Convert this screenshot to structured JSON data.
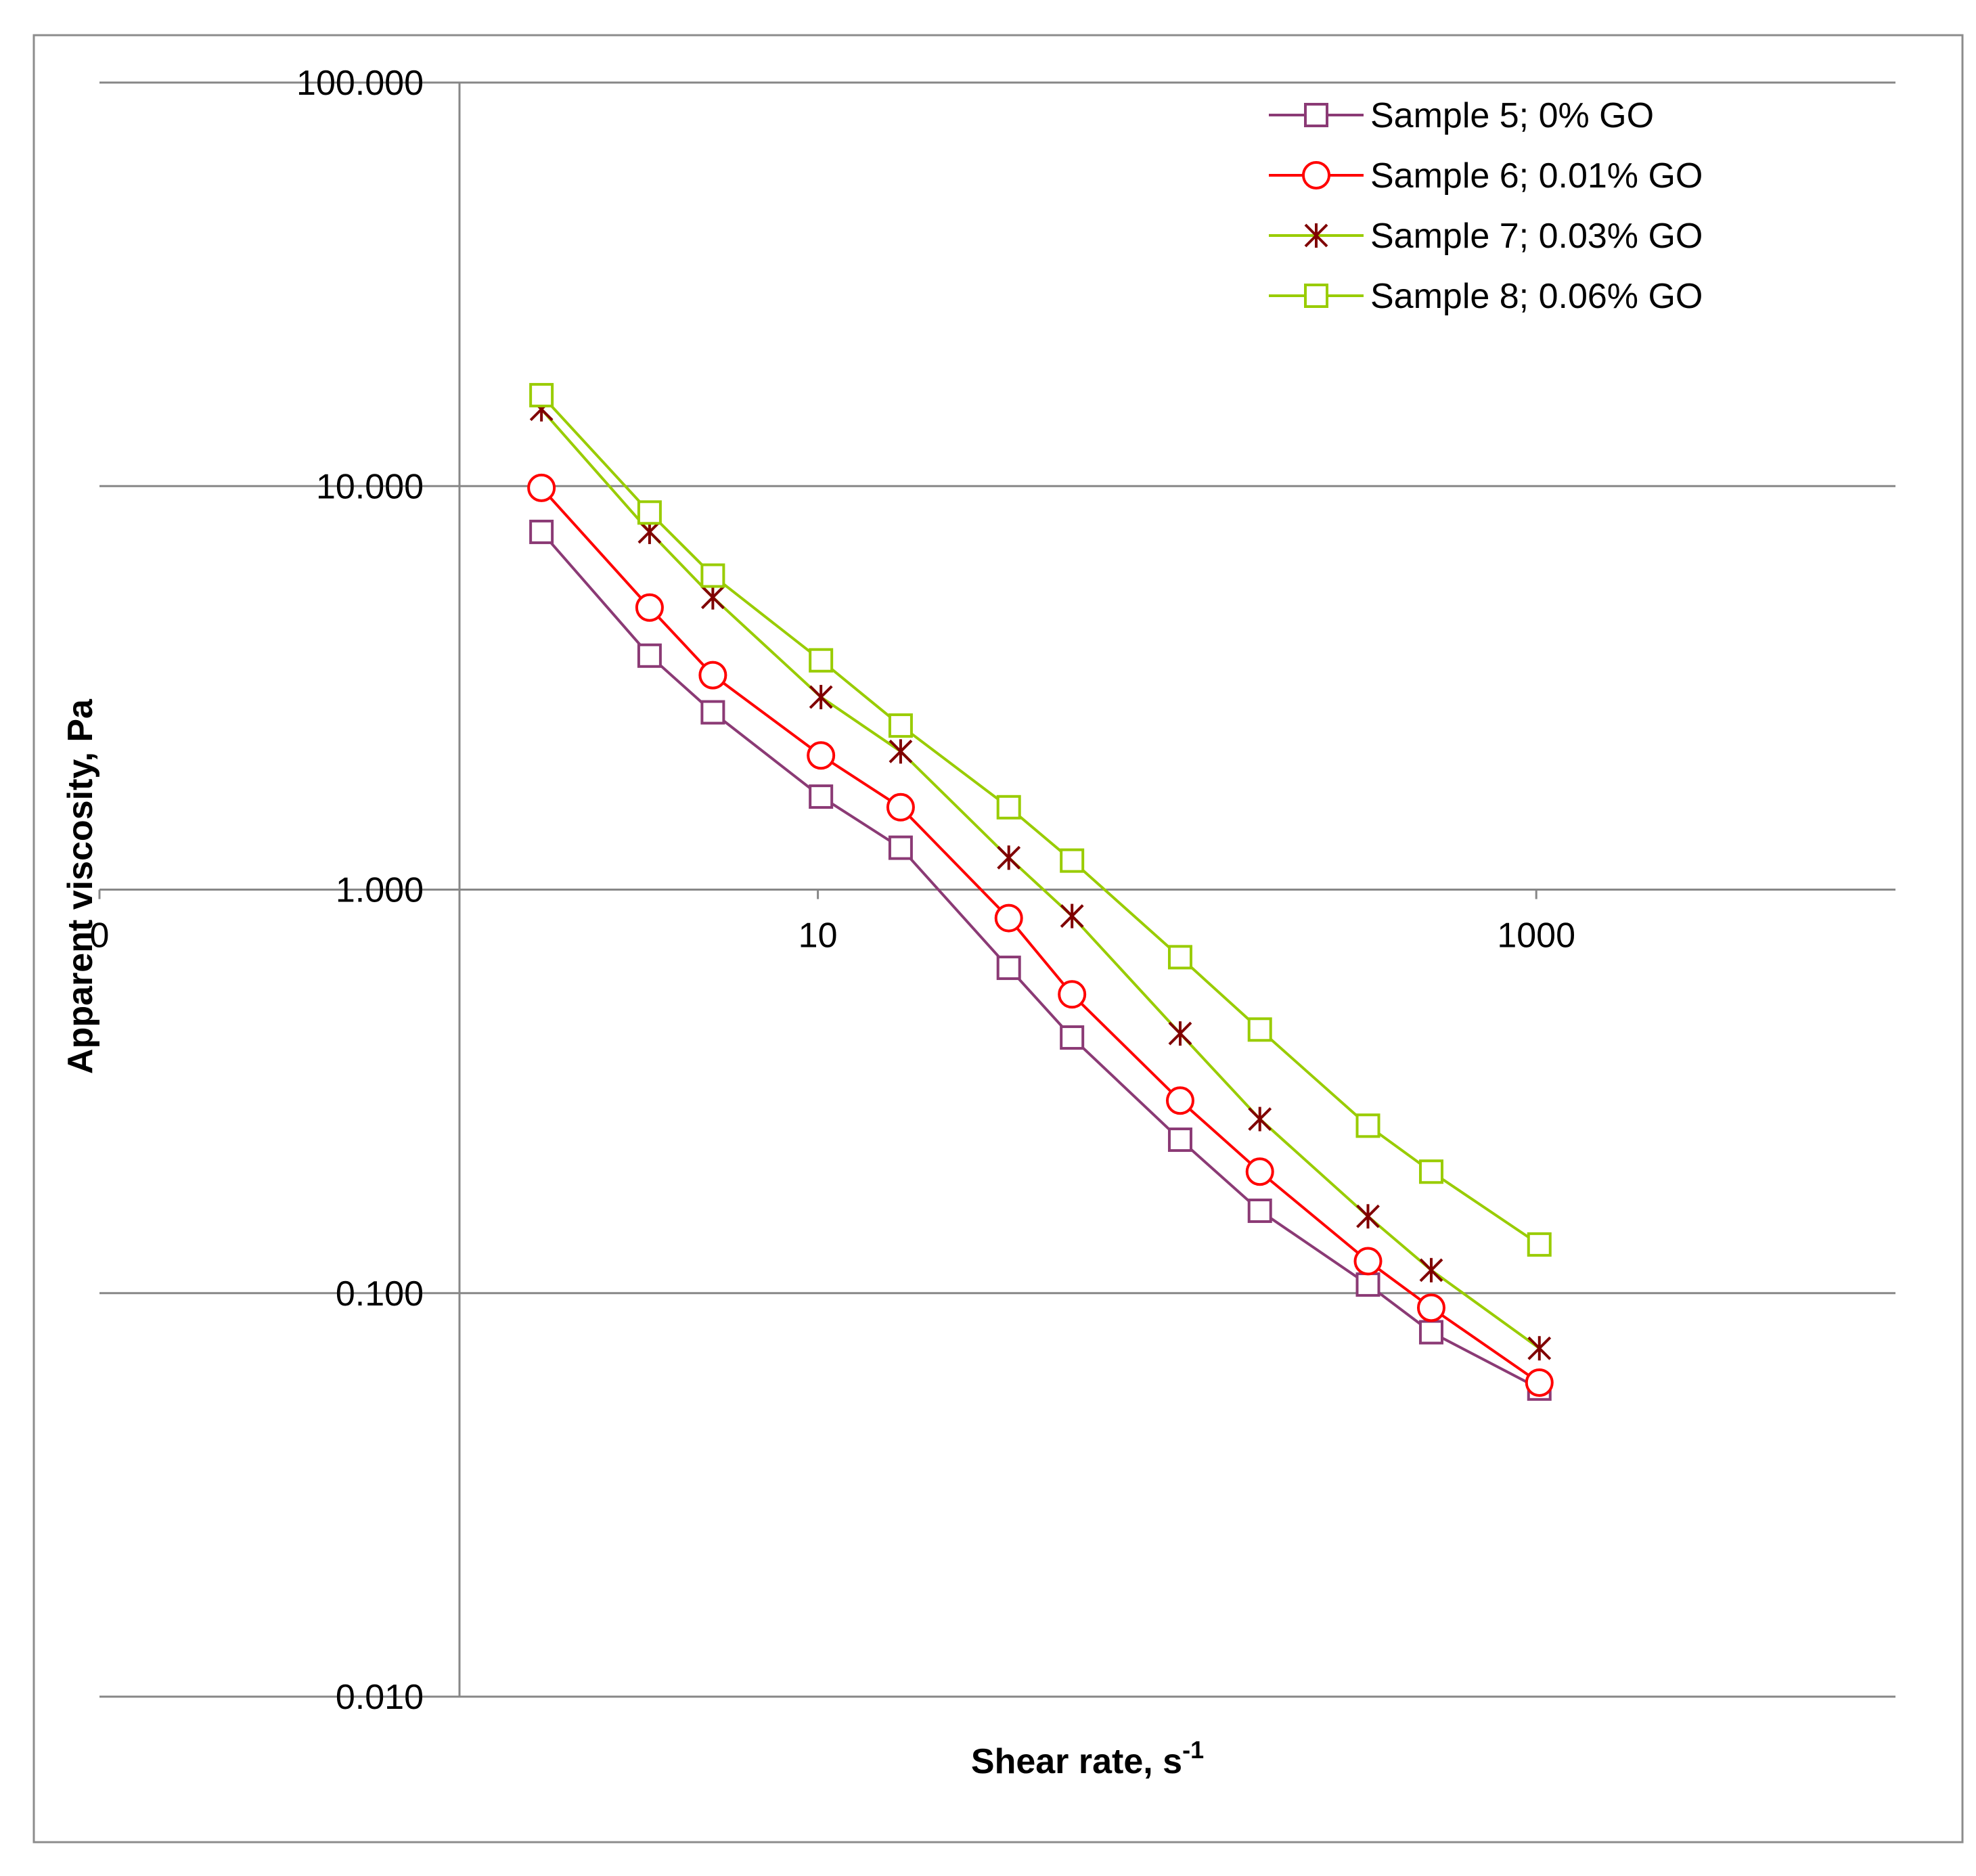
{
  "chart_data": {
    "type": "line",
    "title": "",
    "xlabel": "Shear rate, s",
    "xlabel_superscript": "-1",
    "ylabel": "Apparent viscosity, Pa",
    "xscale": "log",
    "yscale": "log",
    "xlim": [
      0.1,
      10000
    ],
    "ylim": [
      0.01,
      100
    ],
    "xticks": [
      {
        "value": 0.1,
        "label": "0"
      },
      {
        "value": 10,
        "label": "10"
      },
      {
        "value": 1000,
        "label": "1000"
      }
    ],
    "yticks": [
      {
        "value": 0.01,
        "label": "0.010"
      },
      {
        "value": 0.1,
        "label": "0.100"
      },
      {
        "value": 1,
        "label": "1.000"
      },
      {
        "value": 10,
        "label": "10.000"
      },
      {
        "value": 100,
        "label": "100.000"
      }
    ],
    "grid": "horizontal",
    "legend_position": "top-right",
    "x": [
      1.7,
      3.4,
      5.1,
      10.2,
      17,
      34,
      51,
      102,
      170,
      340,
      510,
      1020
    ],
    "series": [
      {
        "name": "Sample 5; 0% GO",
        "color": "#8b3a75",
        "marker": "square",
        "values": [
          7.7,
          3.8,
          2.75,
          1.7,
          1.27,
          0.64,
          0.43,
          0.24,
          0.16,
          0.105,
          0.08,
          0.058
        ]
      },
      {
        "name": "Sample 6; 0.01% GO",
        "color": "#ff0000",
        "marker": "circle",
        "values": [
          9.9,
          5.0,
          3.4,
          2.15,
          1.6,
          0.85,
          0.55,
          0.3,
          0.2,
          0.12,
          0.092,
          0.06
        ]
      },
      {
        "name": "Sample 7; 0.03% GO",
        "color": "#99cc00",
        "marker": "asterisk",
        "marker_color": "#800000",
        "values": [
          15.5,
          7.7,
          5.3,
          3.0,
          2.2,
          1.2,
          0.86,
          0.44,
          0.27,
          0.155,
          0.114,
          0.073
        ]
      },
      {
        "name": "Sample 8; 0.06% GO",
        "color": "#99cc00",
        "marker": "square",
        "values": [
          16.8,
          8.6,
          6.0,
          3.7,
          2.55,
          1.6,
          1.18,
          0.68,
          0.45,
          0.26,
          0.2,
          0.132
        ]
      }
    ]
  }
}
